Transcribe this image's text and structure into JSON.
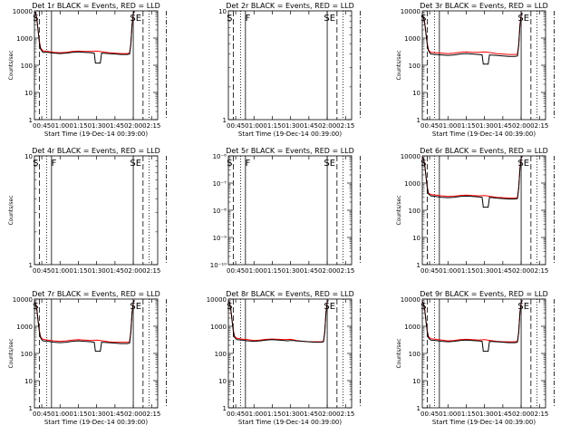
{
  "colors": {
    "events": "#000000",
    "lld": "#ff0000",
    "axes": "#000000",
    "background": "#ffffff"
  },
  "chart_data": [
    {
      "type": "line",
      "title": "Det 1r BLACK = Events, RED = LLD",
      "ylabel": "Counts/sec",
      "xlabel": "Start Time (19-Dec-14 00:39:00)",
      "yscale": "log",
      "ylim": [
        1,
        10000
      ],
      "yticks": [
        "1",
        "10",
        "100",
        "1000",
        "10000"
      ],
      "xticks": [
        "00:45",
        "01:00",
        "01:15",
        "01:30",
        "01:45",
        "02:00",
        "02:15"
      ],
      "markers": [
        "S",
        "SE"
      ],
      "series": [
        {
          "color": "red",
          "x": [
            "00:39",
            "00:40",
            "00:41",
            "00:42",
            "00:43",
            "00:44",
            "00:45",
            "00:46",
            "00:50",
            "00:55",
            "01:00",
            "01:05",
            "01:10",
            "01:15",
            "01:20",
            "01:25",
            "01:30",
            "01:35",
            "01:40",
            "01:45",
            "01:50",
            "01:55",
            "01:57",
            "01:58",
            "01:59",
            "02:00",
            "02:01"
          ],
          "values": [
            9000,
            8500,
            5000,
            2000,
            800,
            450,
            380,
            340,
            320,
            300,
            290,
            300,
            320,
            330,
            320,
            320,
            330,
            310,
            290,
            280,
            270,
            270,
            280,
            600,
            3000,
            8000,
            9500
          ]
        },
        {
          "color": "black",
          "x": [
            "00:39",
            "00:40",
            "00:41",
            "00:42",
            "00:43",
            "00:44",
            "00:45",
            "00:46",
            "00:50",
            "00:55",
            "01:00",
            "01:05",
            "01:10",
            "01:15",
            "01:20",
            "01:25",
            "01:28",
            "01:29",
            "01:33",
            "01:34",
            "01:40",
            "01:45",
            "01:50",
            "01:55",
            "01:57",
            "01:58",
            "01:59",
            "02:00",
            "02:01"
          ],
          "values": [
            9000,
            8500,
            5000,
            2000,
            700,
            400,
            340,
            300,
            300,
            280,
            270,
            280,
            300,
            310,
            300,
            290,
            280,
            120,
            120,
            280,
            270,
            260,
            250,
            250,
            260,
            600,
            3000,
            8000,
            9500
          ]
        }
      ]
    },
    {
      "type": "line",
      "title": "Det 2r BLACK = Events, RED = LLD",
      "ylabel": "",
      "xlabel": "Start Time (19-Dec-14 00:39:00)",
      "yscale": "log",
      "ylim": [
        1,
        10
      ],
      "yticks": [
        "1",
        "10"
      ],
      "xticks": [
        "00:45",
        "01:00",
        "01:15",
        "01:30",
        "01:45",
        "02:00",
        "02:15"
      ],
      "markers": [
        "S",
        "F",
        "SE"
      ],
      "series": []
    },
    {
      "type": "line",
      "title": "Det 3r BLACK = Events, RED = LLD",
      "ylabel": "Counts/sec",
      "xlabel": "Start Time (19-Dec-14 00:39:00)",
      "yscale": "log",
      "ylim": [
        1,
        10000
      ],
      "yticks": [
        "1",
        "10",
        "100",
        "1000",
        "10000"
      ],
      "xticks": [
        "00:45",
        "01:00",
        "01:15",
        "01:30",
        "01:45",
        "02:00",
        "02:15"
      ],
      "markers": [
        "S",
        "SE"
      ],
      "series": [
        {
          "color": "red",
          "x": [
            "00:39",
            "00:40",
            "00:41",
            "00:42",
            "00:43",
            "00:44",
            "00:45",
            "00:46",
            "00:50",
            "00:55",
            "01:00",
            "01:05",
            "01:10",
            "01:15",
            "01:20",
            "01:25",
            "01:30",
            "01:35",
            "01:40",
            "01:45",
            "01:50",
            "01:55",
            "01:57",
            "01:58",
            "01:59",
            "02:00",
            "02:01"
          ],
          "values": [
            7000,
            6000,
            3500,
            1500,
            650,
            380,
            320,
            300,
            290,
            280,
            270,
            280,
            300,
            310,
            300,
            300,
            310,
            290,
            270,
            260,
            250,
            250,
            260,
            600,
            3000,
            7000,
            8500
          ]
        },
        {
          "color": "black",
          "x": [
            "00:39",
            "00:40",
            "00:41",
            "00:42",
            "00:43",
            "00:44",
            "00:45",
            "00:46",
            "00:50",
            "00:55",
            "01:00",
            "01:05",
            "01:10",
            "01:15",
            "01:20",
            "01:25",
            "01:28",
            "01:29",
            "01:33",
            "01:34",
            "01:40",
            "01:45",
            "01:50",
            "01:55",
            "01:57",
            "01:58",
            "01:59",
            "02:00",
            "02:01"
          ],
          "values": [
            7000,
            6000,
            3500,
            1500,
            600,
            350,
            290,
            260,
            250,
            240,
            230,
            240,
            260,
            270,
            260,
            250,
            240,
            110,
            110,
            240,
            230,
            220,
            210,
            210,
            220,
            550,
            2800,
            7000,
            8500
          ]
        }
      ]
    },
    {
      "type": "line",
      "title": "Det 4r BLACK = Events, RED = LLD",
      "ylabel": "Counts/sec",
      "xlabel": "",
      "yscale": "log",
      "ylim": [
        1,
        10
      ],
      "yticks": [
        "1",
        "10"
      ],
      "xticks": [
        "00:45",
        "01:00",
        "01:15",
        "01:30",
        "01:45",
        "02:00",
        "02:15"
      ],
      "markers": [
        "S",
        "F",
        "SE"
      ],
      "series": []
    },
    {
      "type": "line",
      "title": "Det 5r BLACK = Events, RED = LLD",
      "ylabel": "",
      "xlabel": "",
      "yscale": "log",
      "ylim": [
        1e-10,
        1e-06
      ],
      "yticks": [
        "10⁻¹⁰",
        "10⁻⁹",
        "10⁻⁸",
        "10⁻⁷",
        "10⁻⁶"
      ],
      "xticks": [
        "00:45",
        "01:00",
        "01:15",
        "01:30",
        "01:45",
        "02:00",
        "02:15"
      ],
      "markers": [
        "S",
        "F",
        "SE"
      ],
      "series": []
    },
    {
      "type": "line",
      "title": "Det 6r BLACK = Events, RED = LLD",
      "ylabel": "Counts/sec",
      "xlabel": "",
      "yscale": "log",
      "ylim": [
        1,
        10000
      ],
      "yticks": [
        "1",
        "10",
        "100",
        "1000",
        "10000"
      ],
      "xticks": [
        "00:45",
        "01:00",
        "01:15",
        "01:30",
        "01:45",
        "02:00",
        "02:15"
      ],
      "markers": [
        "S",
        "SE"
      ],
      "series": [
        {
          "color": "red",
          "x": [
            "00:39",
            "00:40",
            "00:41",
            "00:42",
            "00:43",
            "00:44",
            "00:45",
            "00:46",
            "00:50",
            "00:55",
            "01:00",
            "01:05",
            "01:10",
            "01:15",
            "01:20",
            "01:25",
            "01:30",
            "01:35",
            "01:40",
            "01:45",
            "01:50",
            "01:55",
            "01:57",
            "01:58",
            "01:59",
            "02:00",
            "02:01"
          ],
          "values": [
            9000,
            8000,
            4500,
            1800,
            750,
            430,
            400,
            380,
            360,
            340,
            320,
            330,
            350,
            360,
            350,
            340,
            350,
            320,
            300,
            290,
            280,
            280,
            290,
            700,
            3500,
            8500,
            9500
          ]
        },
        {
          "color": "black",
          "x": [
            "00:39",
            "00:40",
            "00:41",
            "00:42",
            "00:43",
            "00:44",
            "00:45",
            "00:46",
            "00:50",
            "00:55",
            "01:00",
            "01:05",
            "01:10",
            "01:15",
            "01:20",
            "01:25",
            "01:28",
            "01:29",
            "01:33",
            "01:34",
            "01:40",
            "01:45",
            "01:50",
            "01:55",
            "01:57",
            "01:58",
            "01:59",
            "02:00",
            "02:01"
          ],
          "values": [
            9000,
            8000,
            4500,
            1800,
            700,
            400,
            370,
            340,
            320,
            300,
            290,
            300,
            320,
            330,
            320,
            310,
            300,
            130,
            130,
            300,
            280,
            270,
            260,
            260,
            270,
            650,
            3200,
            8500,
            9500
          ]
        }
      ]
    },
    {
      "type": "line",
      "title": "Det 7r BLACK = Events, RED = LLD",
      "ylabel": "Counts/sec",
      "xlabel": "Start Time (19-Dec-14 00:39:00)",
      "yscale": "log",
      "ylim": [
        1,
        10000
      ],
      "yticks": [
        "1",
        "10",
        "100",
        "1000",
        "10000"
      ],
      "xticks": [
        "00:45",
        "01:00",
        "01:15",
        "01:30",
        "01:45",
        "02:00",
        "02:15"
      ],
      "markers": [
        "S",
        "SE"
      ],
      "series": [
        {
          "color": "red",
          "x": [
            "00:39",
            "00:40",
            "00:41",
            "00:42",
            "00:43",
            "00:44",
            "00:45",
            "00:46",
            "00:50",
            "00:55",
            "01:00",
            "01:05",
            "01:10",
            "01:15",
            "01:20",
            "01:25",
            "01:30",
            "01:35",
            "01:40",
            "01:45",
            "01:50",
            "01:55",
            "01:57",
            "01:58",
            "01:59",
            "02:00",
            "02:01"
          ],
          "values": [
            8000,
            7000,
            4000,
            1600,
            700,
            420,
            360,
            330,
            310,
            290,
            280,
            290,
            310,
            320,
            310,
            300,
            310,
            290,
            270,
            260,
            260,
            260,
            270,
            650,
            3200,
            7500,
            9000
          ]
        },
        {
          "color": "black",
          "x": [
            "00:39",
            "00:40",
            "00:41",
            "00:42",
            "00:43",
            "00:44",
            "00:45",
            "00:46",
            "00:50",
            "00:55",
            "01:00",
            "01:05",
            "01:10",
            "01:15",
            "01:20",
            "01:25",
            "01:28",
            "01:29",
            "01:33",
            "01:34",
            "01:40",
            "01:45",
            "01:50",
            "01:55",
            "01:57",
            "01:58",
            "01:59",
            "02:00",
            "02:01"
          ],
          "values": [
            8000,
            7000,
            4000,
            1600,
            650,
            380,
            320,
            290,
            280,
            260,
            250,
            260,
            280,
            290,
            280,
            270,
            260,
            120,
            120,
            260,
            250,
            240,
            230,
            230,
            240,
            600,
            3000,
            7500,
            9000
          ]
        }
      ]
    },
    {
      "type": "line",
      "title": "Det 8r BLACK = Events, RED = LLD",
      "ylabel": "",
      "xlabel": "Start Time (19-Dec-14 00:39:00)",
      "yscale": "log",
      "ylim": [
        1,
        10000
      ],
      "yticks": [
        "1",
        "10",
        "100",
        "1000",
        "10000"
      ],
      "xticks": [
        "00:45",
        "01:00",
        "01:15",
        "01:30",
        "01:45",
        "02:00",
        "02:15"
      ],
      "markers": [
        "S",
        "SE"
      ],
      "series": [
        {
          "color": "red",
          "x": [
            "00:39",
            "00:40",
            "00:41",
            "00:42",
            "00:43",
            "00:44",
            "00:45",
            "00:46",
            "00:50",
            "00:55",
            "01:00",
            "01:05",
            "01:10",
            "01:15",
            "01:20",
            "01:25",
            "01:30",
            "01:35",
            "01:40",
            "01:45",
            "01:50",
            "01:55",
            "01:57",
            "01:58",
            "01:59",
            "02:00",
            "02:01"
          ],
          "values": [
            8500,
            7500,
            4200,
            1700,
            720,
            440,
            390,
            360,
            340,
            320,
            300,
            310,
            330,
            340,
            330,
            320,
            330,
            300,
            280,
            270,
            270,
            270,
            280,
            650,
            3300,
            8000,
            9000
          ]
        },
        {
          "color": "black",
          "x": [
            "00:39",
            "00:40",
            "00:41",
            "00:42",
            "00:43",
            "00:44",
            "00:45",
            "00:46",
            "00:50",
            "00:55",
            "01:00",
            "01:05",
            "01:10",
            "01:15",
            "01:20",
            "01:25",
            "01:28",
            "01:29",
            "01:33",
            "01:34",
            "01:40",
            "01:45",
            "01:50",
            "01:55",
            "01:57",
            "01:58",
            "01:59",
            "02:00",
            "02:01"
          ],
          "values": [
            8500,
            7500,
            4200,
            1700,
            680,
            400,
            350,
            320,
            310,
            290,
            280,
            290,
            310,
            320,
            310,
            300,
            290,
            300,
            300,
            290,
            280,
            270,
            260,
            260,
            270,
            620,
            3100,
            8000,
            9000
          ]
        }
      ]
    },
    {
      "type": "line",
      "title": "Det 9r BLACK = Events, RED = LLD",
      "ylabel": "Counts/sec",
      "xlabel": "Start Time (19-Dec-14 00:39:00)",
      "yscale": "log",
      "ylim": [
        1,
        10000
      ],
      "yticks": [
        "1",
        "10",
        "100",
        "1000",
        "10000"
      ],
      "xticks": [
        "00:45",
        "01:00",
        "01:15",
        "01:30",
        "01:45",
        "02:00",
        "02:15"
      ],
      "markers": [
        "S",
        "SE"
      ],
      "series": [
        {
          "color": "red",
          "x": [
            "00:39",
            "00:40",
            "00:41",
            "00:42",
            "00:43",
            "00:44",
            "00:45",
            "00:46",
            "00:50",
            "00:55",
            "01:00",
            "01:05",
            "01:10",
            "01:15",
            "01:20",
            "01:25",
            "01:30",
            "01:35",
            "01:40",
            "01:45",
            "01:50",
            "01:55",
            "01:57",
            "01:58",
            "01:59",
            "02:00",
            "02:01"
          ],
          "values": [
            8000,
            7000,
            4000,
            1600,
            700,
            420,
            380,
            350,
            330,
            310,
            290,
            300,
            320,
            330,
            320,
            310,
            320,
            300,
            280,
            270,
            270,
            270,
            280,
            650,
            3200,
            7500,
            9000
          ]
        },
        {
          "color": "black",
          "x": [
            "00:39",
            "00:40",
            "00:41",
            "00:42",
            "00:43",
            "00:44",
            "00:45",
            "00:46",
            "00:50",
            "00:55",
            "01:00",
            "01:05",
            "01:10",
            "01:15",
            "01:20",
            "01:25",
            "01:28",
            "01:29",
            "01:33",
            "01:34",
            "01:40",
            "01:45",
            "01:50",
            "01:55",
            "01:57",
            "01:58",
            "01:59",
            "02:00",
            "02:01"
          ],
          "values": [
            8000,
            7000,
            4000,
            1600,
            650,
            380,
            340,
            310,
            300,
            280,
            270,
            280,
            300,
            310,
            300,
            290,
            280,
            120,
            120,
            280,
            270,
            260,
            250,
            250,
            260,
            600,
            3000,
            7500,
            9000
          ]
        }
      ]
    }
  ]
}
